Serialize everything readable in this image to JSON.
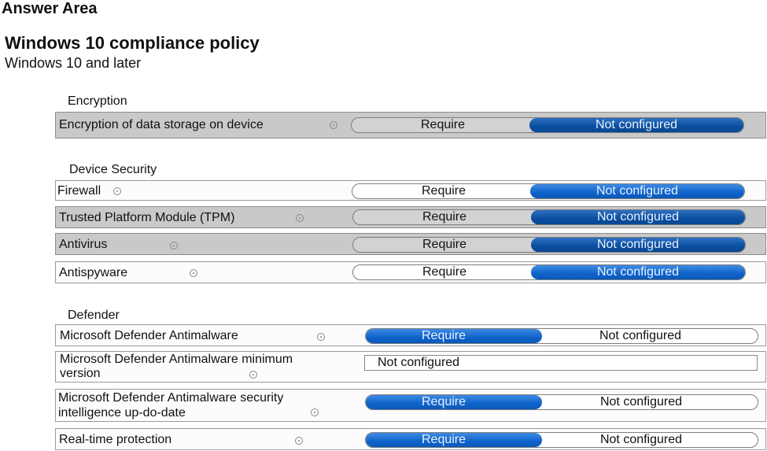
{
  "header": {
    "answer_area": "Answer Area"
  },
  "policy": {
    "title": "Windows 10 compliance policy",
    "subtitle": "Windows 10 and later"
  },
  "sections": {
    "encryption": "Encryption",
    "device_security": "Device Security",
    "defender": "Defender"
  },
  "settings": {
    "encryption": {
      "label": "Encryption of data storage on device",
      "opt_a": "Require",
      "opt_b": "Not configured",
      "selected": "Not configured"
    },
    "firewall": {
      "label": "Firewall",
      "opt_a": "Require",
      "opt_b": "Not configured",
      "selected": "Not configured"
    },
    "tpm": {
      "label": "Trusted Platform Module (TPM)",
      "opt_a": "Require",
      "opt_b": "Not configured",
      "selected": "Not configured"
    },
    "antivirus": {
      "label": "Antivirus",
      "opt_a": "Require",
      "opt_b": "Not configured",
      "selected": "Not configured"
    },
    "antispyware": {
      "label": "Antispyware",
      "opt_a": "Require",
      "opt_b": "Not configured",
      "selected": "Not configured"
    },
    "defender_antimalware": {
      "label": "Microsoft Defender Antimalware",
      "opt_a": "Require",
      "opt_b": "Not configured",
      "selected": "Require"
    },
    "defender_min_version": {
      "label_line1": "Microsoft Defender Antimalware minimum",
      "label_line2": "version",
      "value": "Not configured"
    },
    "defender_security_intel": {
      "label_line1": "Microsoft Defender Antimalware security",
      "label_line2": "intelligence up-do-date",
      "opt_a": "Require",
      "opt_b": "Not configured",
      "selected": "Require"
    },
    "realtime": {
      "label": "Real-time protection",
      "opt_a": "Require",
      "opt_b": "Not configured",
      "selected": "Require"
    }
  },
  "icons": {
    "info": "info-icon"
  },
  "colors": {
    "selected_fill": "#0e63c9",
    "row_gray": "#c9c9c9"
  }
}
